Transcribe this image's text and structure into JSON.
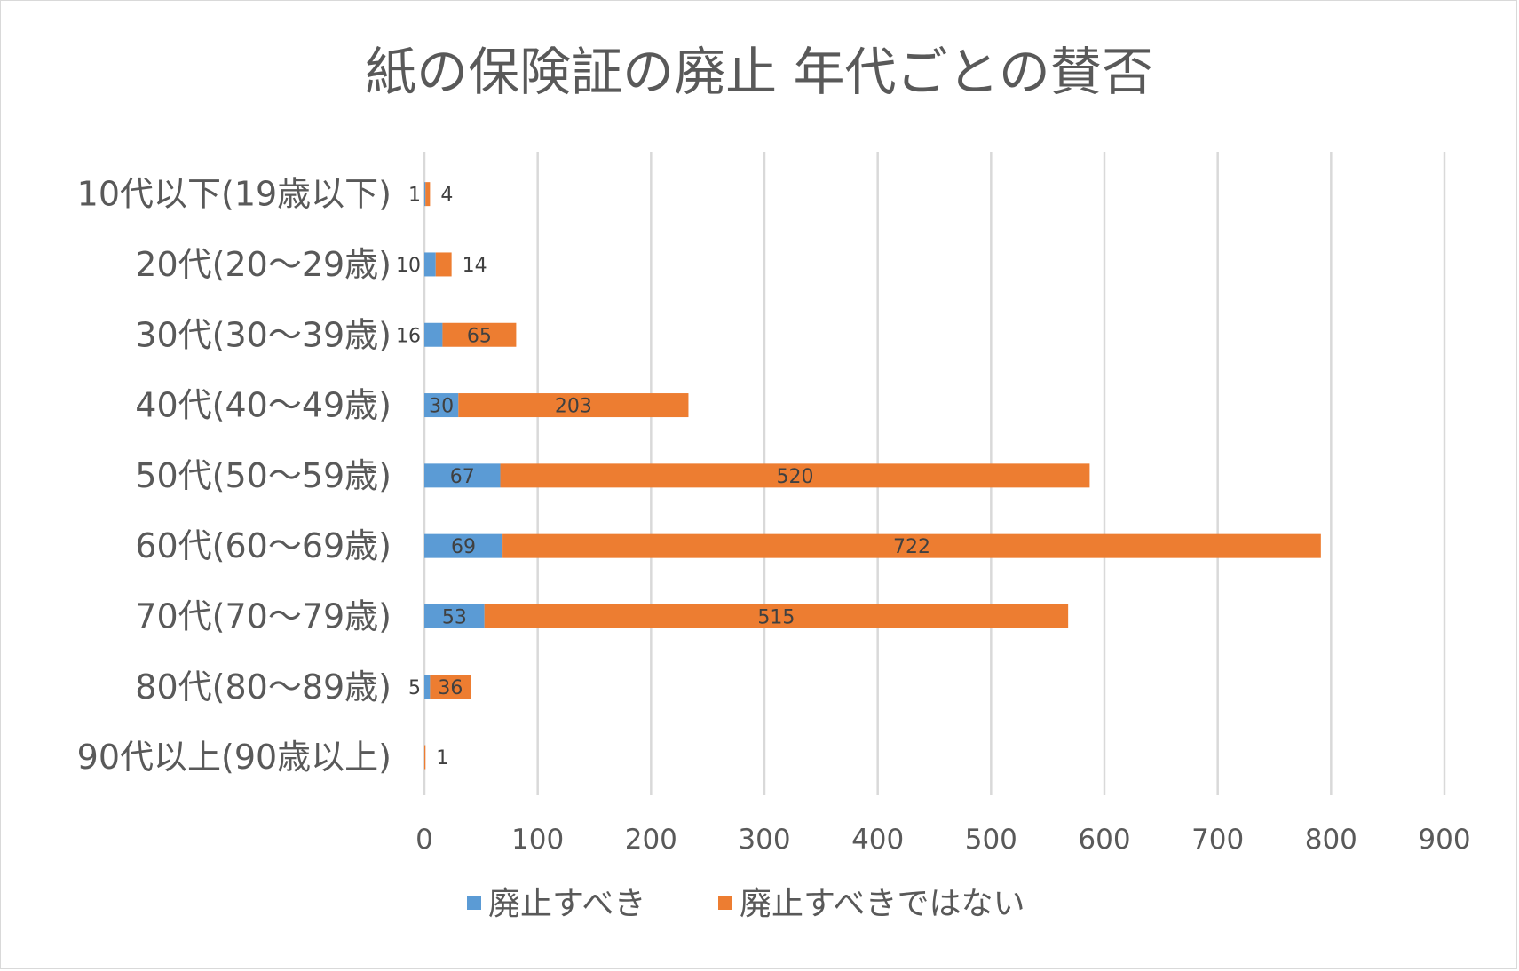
{
  "chart_data": {
    "type": "bar",
    "orientation": "horizontal",
    "stacked": true,
    "title": "紙の保険証の廃止 年代ごとの賛否",
    "categories": [
      "10代以下(19歳以下)",
      "20代(20～29歳)",
      "30代(30～39歳)",
      "40代(40～49歳)",
      "50代(50～59歳)",
      "60代(60～69歳)",
      "70代(70～79歳)",
      "80代(80～89歳)",
      "90代以上(90歳以上)"
    ],
    "series": [
      {
        "name": "廃止すべき",
        "color": "#5b9bd5",
        "values": [
          1,
          10,
          16,
          30,
          67,
          69,
          53,
          5,
          0
        ],
        "data_labels": [
          "1",
          "10",
          "16",
          "30",
          "67",
          "69",
          "53",
          "5",
          ""
        ]
      },
      {
        "name": "廃止すべきではない",
        "color": "#ed7d31",
        "values": [
          4,
          14,
          65,
          203,
          520,
          722,
          515,
          36,
          1
        ],
        "data_labels": [
          "4",
          "14",
          "65",
          "203",
          "520",
          "722",
          "515",
          "36",
          "1"
        ]
      }
    ],
    "xlim": [
      0,
      900
    ],
    "x_ticks": [
      "0",
      "100",
      "200",
      "300",
      "400",
      "500",
      "600",
      "700",
      "800",
      "900"
    ],
    "grid": true,
    "legend_position": "bottom"
  }
}
